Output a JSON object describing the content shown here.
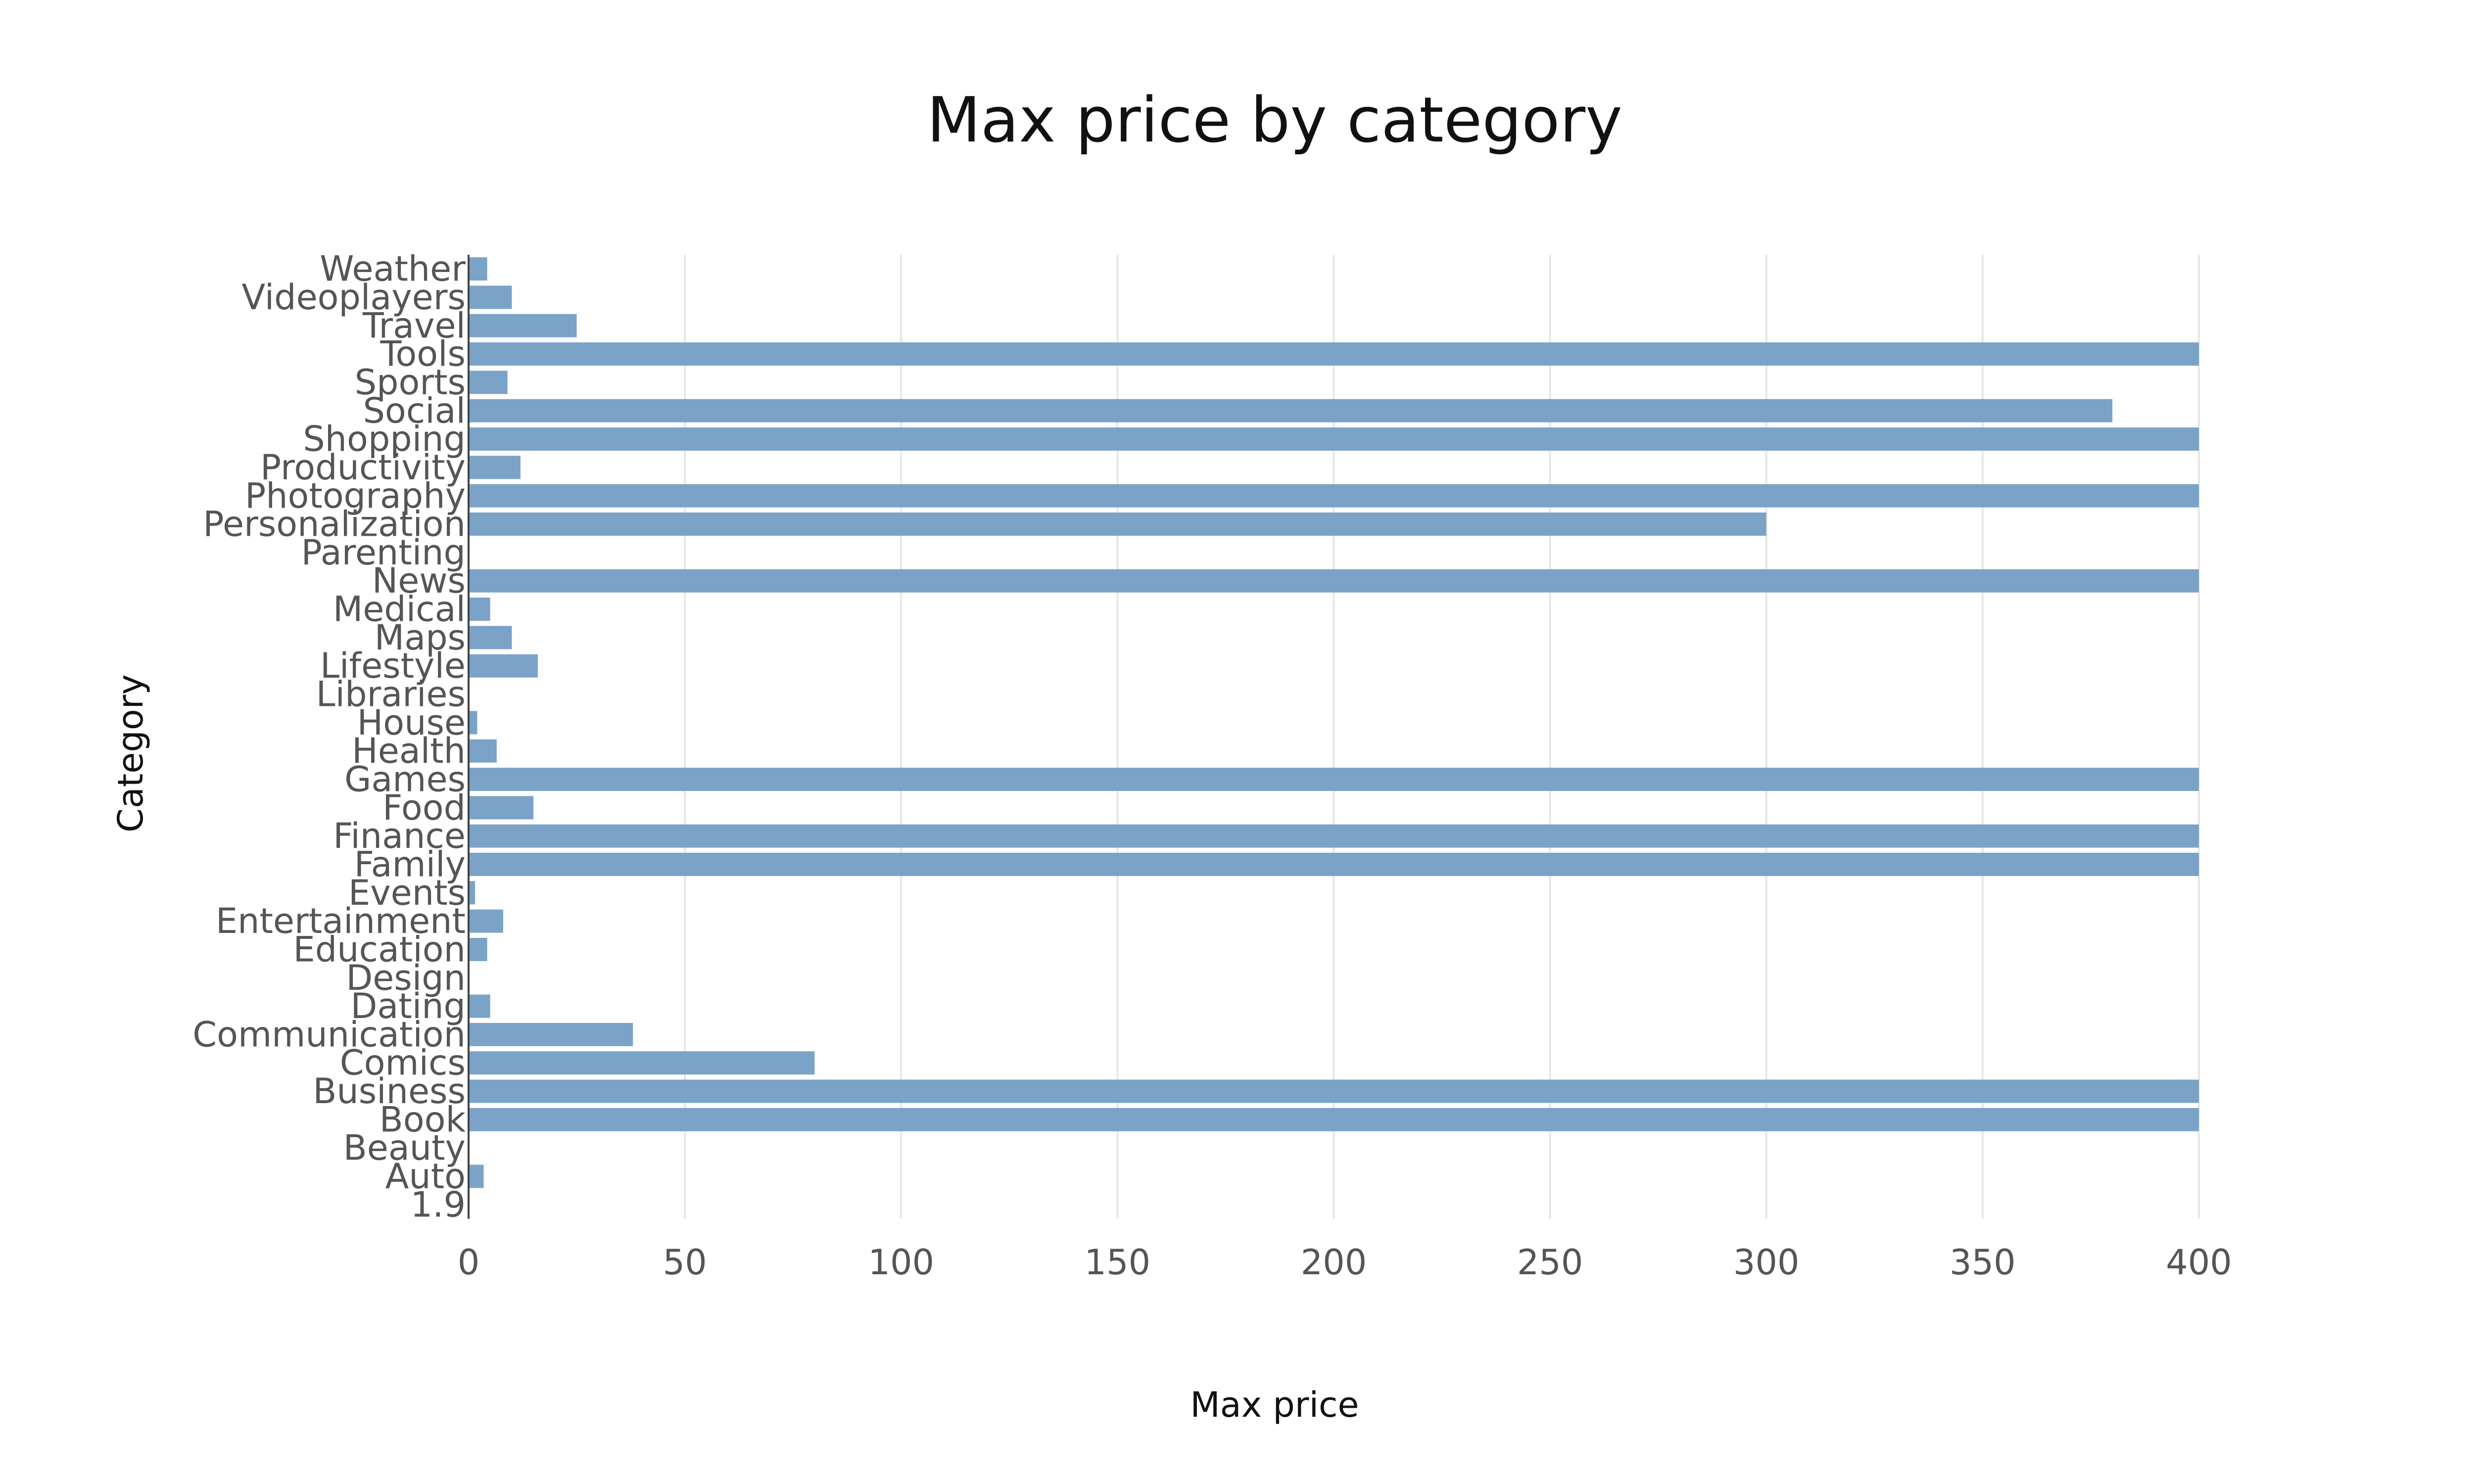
{
  "chart_data": {
    "type": "bar",
    "orientation": "horizontal",
    "title": "Max price by category",
    "xlabel": "Max price",
    "ylabel": "Category",
    "xlim": [
      0,
      400
    ],
    "x_ticks": [
      "0",
      "50",
      "100",
      "150",
      "200",
      "250",
      "300",
      "350",
      "400"
    ],
    "grid": true,
    "bar_color": "#7ba3c8",
    "categories": [
      "1.9",
      "Auto",
      "Beauty",
      "Book",
      "Business",
      "Comics",
      "Communication",
      "Dating",
      "Design",
      "Education",
      "Entertainment",
      "Events",
      "Family",
      "Finance",
      "Food",
      "Games",
      "Health",
      "House",
      "Libraries",
      "Lifestyle",
      "Maps",
      "Medical",
      "News",
      "Parenting",
      "Personalization",
      "Photography",
      "Productivity",
      "Shopping",
      "Social",
      "Sports",
      "Tools",
      "Travel",
      "Videoplayers",
      "Weather"
    ],
    "values": [
      0,
      3.5,
      0,
      400,
      400,
      80,
      38,
      5,
      0,
      4.3,
      8,
      1.5,
      400,
      400,
      15,
      400,
      6.5,
      2,
      0,
      16,
      10,
      5,
      400,
      0,
      300,
      400,
      12,
      400,
      380,
      9,
      400,
      25,
      10,
      4.3
    ]
  }
}
